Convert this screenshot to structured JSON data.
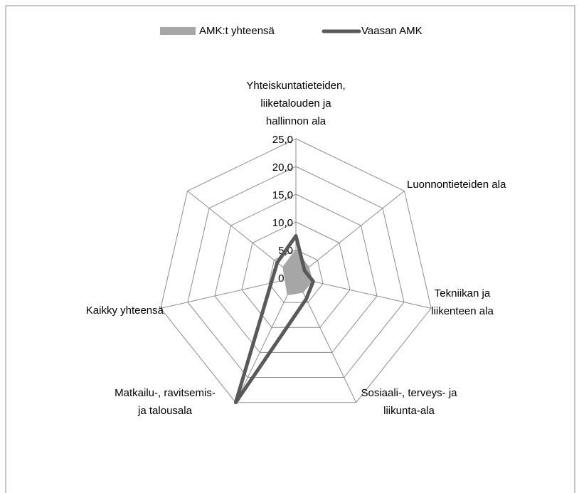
{
  "chart_data": {
    "type": "radar",
    "categories": [
      "Yhteiskuntatieteiden, liiketalouden ja hallinnon ala",
      "Luonnontieteiden ala",
      "Tekniikan ja liikenteen ala",
      "Sosiaali-, terveys- ja liikunta-ala",
      "Matkailu-, ravitsemis- ja talousala",
      "Kaikky yhteensä"
    ],
    "series": [
      {
        "name": "AMK:t yhteensä",
        "color": "#a6a6a6",
        "values": [
          5.0,
          3.0,
          3.0,
          3.0,
          3.5,
          3.0
        ]
      },
      {
        "name": "Vaasan AMK",
        "color": "#595959",
        "values": [
          7.5,
          2.0,
          3.2,
          4.3,
          25.0,
          4.3
        ]
      }
    ],
    "ylim": [
      0,
      25
    ],
    "yticks": [
      {
        "value": 0,
        "label": "0,0"
      },
      {
        "value": 5,
        "label": "5,0"
      },
      {
        "value": 10,
        "label": "10,0"
      },
      {
        "value": 15,
        "label": "15,0"
      },
      {
        "value": 20,
        "label": "20,0"
      },
      {
        "value": 25,
        "label": "25,0"
      }
    ],
    "grid": true,
    "legend": "top"
  }
}
